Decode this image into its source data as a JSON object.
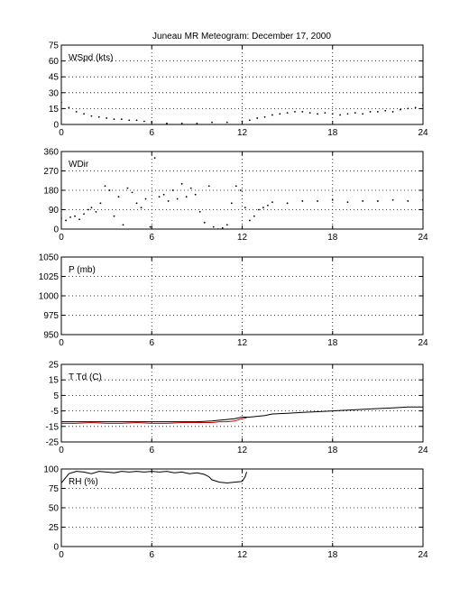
{
  "figure": {
    "title": "Juneau MR Meteogram:   December 17, 2000"
  },
  "chart_data": [
    {
      "type": "scatter",
      "panel_label": "WSpd (kts)",
      "xlim": [
        0,
        24
      ],
      "ylim": [
        0,
        75
      ],
      "xticks": [
        0,
        6,
        12,
        18,
        24
      ],
      "yticks": [
        0,
        15,
        30,
        45,
        60,
        75
      ],
      "grid": true,
      "series": [
        {
          "color": "#000000",
          "style": "dots",
          "x": [
            0.0,
            0.5,
            1.0,
            1.5,
            2.0,
            2.5,
            3.0,
            3.5,
            4.0,
            4.5,
            5.0,
            5.5,
            6.0,
            7.0,
            8.0,
            9.0,
            10.0,
            11.0,
            12.0,
            12.5,
            13.0,
            13.5,
            14.0,
            14.5,
            15.0,
            15.5,
            16.0,
            16.5,
            17.0,
            17.5,
            18.0,
            18.5,
            19.0,
            19.5,
            20.0,
            20.5,
            21.0,
            21.5,
            22.0,
            22.5,
            23.0,
            23.5,
            24.0
          ],
          "y": [
            21,
            16,
            12,
            10,
            8,
            7,
            6,
            5,
            5,
            4,
            4,
            3,
            2,
            1,
            1,
            1,
            2,
            2,
            3,
            4,
            6,
            7,
            9,
            10,
            11,
            12,
            12,
            11,
            10,
            11,
            10,
            9,
            10,
            11,
            10,
            12,
            12,
            13,
            12,
            14,
            15,
            16,
            18
          ]
        }
      ]
    },
    {
      "type": "scatter",
      "panel_label": "WDir",
      "xlim": [
        0,
        24
      ],
      "ylim": [
        0,
        360
      ],
      "xticks": [
        0,
        6,
        12,
        18,
        24
      ],
      "yticks": [
        0,
        90,
        180,
        270,
        360
      ],
      "grid": true,
      "series": [
        {
          "color": "#000000",
          "style": "dots",
          "x": [
            0.0,
            0.3,
            0.6,
            0.9,
            1.2,
            1.5,
            1.8,
            2.0,
            2.3,
            2.6,
            2.9,
            3.2,
            3.5,
            3.8,
            4.1,
            4.4,
            4.7,
            5.0,
            5.3,
            5.6,
            5.9,
            6.2,
            6.5,
            6.8,
            7.1,
            7.4,
            7.7,
            8.0,
            8.3,
            8.6,
            8.9,
            9.2,
            9.5,
            9.8,
            10.1,
            10.4,
            10.7,
            11.0,
            11.3,
            11.6,
            11.9,
            12.2,
            12.5,
            12.8,
            13.1,
            13.4,
            13.7,
            14.0,
            15.0,
            16.0,
            17.0,
            18.0,
            19.0,
            20.0,
            21.0,
            22.0,
            23.0,
            24.0
          ],
          "y": [
            50,
            40,
            55,
            60,
            45,
            70,
            90,
            100,
            80,
            120,
            200,
            180,
            60,
            150,
            20,
            190,
            170,
            120,
            100,
            140,
            10,
            330,
            150,
            160,
            130,
            180,
            140,
            210,
            150,
            190,
            160,
            80,
            30,
            200,
            10,
            0,
            5,
            20,
            120,
            200,
            180,
            100,
            40,
            60,
            90,
            100,
            110,
            125,
            120,
            130,
            130,
            135,
            125,
            130,
            130,
            135,
            130,
            135
          ]
        }
      ]
    },
    {
      "type": "line",
      "panel_label": "P (mb)",
      "xlim": [
        0,
        24
      ],
      "ylim": [
        950,
        1050
      ],
      "xticks": [
        0,
        6,
        12,
        18,
        24
      ],
      "yticks": [
        950,
        975,
        1000,
        1025,
        1050
      ],
      "grid": true,
      "series": []
    },
    {
      "type": "line",
      "panel_label": "T Td (C)",
      "xlim": [
        0,
        24
      ],
      "ylim": [
        -25,
        25
      ],
      "xticks": [
        0,
        6,
        12,
        18,
        24
      ],
      "yticks": [
        -25,
        -15,
        -5,
        5,
        15,
        25
      ],
      "grid": true,
      "series": [
        {
          "color": "#000000",
          "x": [
            0.0,
            1.0,
            2.0,
            3.0,
            4.0,
            5.0,
            6.0,
            7.0,
            8.0,
            9.0,
            10.0,
            10.5,
            11.0,
            11.5,
            12.0,
            12.5,
            13.0,
            13.5,
            14.0,
            15.0,
            16.0,
            17.0,
            18.0,
            19.0,
            20.0,
            21.0,
            22.0,
            23.0,
            24.0
          ],
          "y": [
            -12,
            -12,
            -12,
            -12,
            -12,
            -12,
            -12,
            -12,
            -12,
            -12,
            -11.5,
            -11,
            -10.5,
            -10,
            -9,
            -9,
            -8.5,
            -8,
            -7,
            -6.5,
            -6,
            -5.5,
            -5,
            -4.5,
            -4,
            -3.5,
            -3,
            -2.5,
            -2.5
          ]
        },
        {
          "color": "#d00000",
          "x": [
            0.0,
            1.0,
            2.0,
            3.0,
            4.0,
            5.0,
            6.0,
            7.0,
            8.0,
            9.0,
            10.0,
            10.5,
            11.0,
            11.5,
            12.0,
            12.3
          ],
          "y": [
            -13,
            -13,
            -12.5,
            -13,
            -13,
            -12.5,
            -13,
            -13,
            -12.5,
            -12.5,
            -12.5,
            -12,
            -12,
            -11.5,
            -10,
            -9.5
          ]
        }
      ]
    },
    {
      "type": "line",
      "panel_label": "RH (%)",
      "xlim": [
        0,
        24
      ],
      "ylim": [
        0,
        100
      ],
      "xticks": [
        0,
        6,
        12,
        18,
        24
      ],
      "yticks": [
        0,
        25,
        50,
        75,
        100
      ],
      "grid": true,
      "series": [
        {
          "color": "#000000",
          "x": [
            0.0,
            0.5,
            1.0,
            1.5,
            2.0,
            2.5,
            3.0,
            3.5,
            4.0,
            4.5,
            5.0,
            5.5,
            6.0,
            6.5,
            7.0,
            7.5,
            8.0,
            8.5,
            9.0,
            9.5,
            9.8,
            10.0,
            10.5,
            11.0,
            11.5,
            12.0,
            12.2,
            12.3
          ],
          "y": [
            82,
            94,
            97,
            96,
            94,
            97,
            96,
            95,
            97,
            96,
            97,
            96,
            97,
            96,
            97,
            95,
            96,
            94,
            95,
            93,
            90,
            86,
            83,
            82,
            83,
            84,
            90,
            96
          ]
        }
      ]
    }
  ]
}
